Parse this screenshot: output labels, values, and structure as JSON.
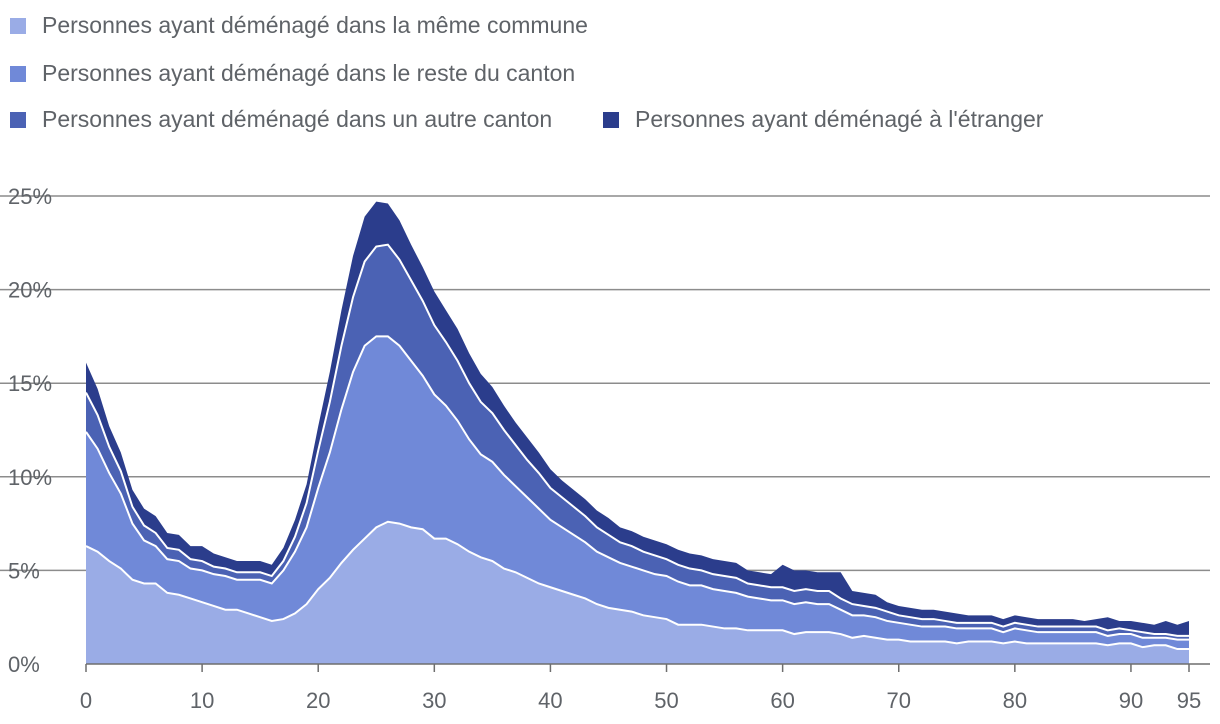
{
  "legend": [
    {
      "label": "Personnes ayant déménagé dans la même commune",
      "color": "#9aace6"
    },
    {
      "label": "Personnes ayant déménagé dans le reste du canton",
      "color": "#7089d8"
    },
    {
      "label": "Personnes ayant déménagé dans un autre canton",
      "color": "#4b62b4"
    },
    {
      "label": "Personnes ayant déménagé à l'étranger",
      "color": "#2b3d8c"
    }
  ],
  "chart_data": {
    "type": "area",
    "stacked": true,
    "title": "",
    "xlabel": "",
    "ylabel": "",
    "x": [
      0,
      1,
      2,
      3,
      4,
      5,
      6,
      7,
      8,
      9,
      10,
      11,
      12,
      13,
      14,
      15,
      16,
      17,
      18,
      19,
      20,
      21,
      22,
      23,
      24,
      25,
      26,
      27,
      28,
      29,
      30,
      31,
      32,
      33,
      34,
      35,
      36,
      37,
      38,
      39,
      40,
      41,
      42,
      43,
      44,
      45,
      46,
      47,
      48,
      49,
      50,
      51,
      52,
      53,
      54,
      55,
      56,
      57,
      58,
      59,
      60,
      61,
      62,
      63,
      64,
      65,
      66,
      67,
      68,
      69,
      70,
      71,
      72,
      73,
      74,
      75,
      76,
      77,
      78,
      79,
      80,
      81,
      82,
      83,
      84,
      85,
      86,
      87,
      88,
      89,
      90,
      91,
      92,
      93,
      94,
      95
    ],
    "xlim": [
      0,
      95
    ],
    "ylim": [
      0,
      25
    ],
    "x_ticks": [
      0,
      10,
      20,
      30,
      40,
      50,
      60,
      70,
      80,
      90,
      95
    ],
    "y_ticks": [
      0,
      5,
      10,
      15,
      20,
      25
    ],
    "y_tick_labels": [
      "0%",
      "5%",
      "10%",
      "15%",
      "20%",
      "25%"
    ],
    "grid": "horizontal",
    "legend_position": "top",
    "series": [
      {
        "name": "Personnes ayant déménagé dans la même commune",
        "color": "#9aace6",
        "values": [
          6.3,
          6.0,
          5.5,
          5.1,
          4.5,
          4.3,
          4.3,
          3.8,
          3.7,
          3.5,
          3.3,
          3.1,
          2.9,
          2.9,
          2.7,
          2.5,
          2.3,
          2.4,
          2.7,
          3.2,
          4.0,
          4.6,
          5.4,
          6.1,
          6.7,
          7.3,
          7.6,
          7.5,
          7.3,
          7.2,
          6.7,
          6.7,
          6.4,
          6.0,
          5.7,
          5.5,
          5.1,
          4.9,
          4.6,
          4.3,
          4.1,
          3.9,
          3.7,
          3.5,
          3.2,
          3.0,
          2.9,
          2.8,
          2.6,
          2.5,
          2.4,
          2.1,
          2.1,
          2.1,
          2.0,
          1.9,
          1.9,
          1.8,
          1.8,
          1.8,
          1.8,
          1.6,
          1.7,
          1.7,
          1.7,
          1.6,
          1.4,
          1.5,
          1.4,
          1.3,
          1.3,
          1.2,
          1.2,
          1.2,
          1.2,
          1.1,
          1.2,
          1.2,
          1.2,
          1.1,
          1.2,
          1.1,
          1.1,
          1.1,
          1.1,
          1.1,
          1.1,
          1.1,
          1.0,
          1.1,
          1.1,
          0.9,
          1.0,
          1.0,
          0.8,
          0.8
        ]
      },
      {
        "name": "Personnes ayant déménagé dans le reste du canton",
        "color": "#7089d8",
        "values": [
          6.1,
          5.5,
          4.7,
          4.0,
          3.0,
          2.3,
          2.0,
          1.8,
          1.8,
          1.6,
          1.7,
          1.7,
          1.8,
          1.6,
          1.8,
          2.0,
          2.0,
          2.6,
          3.3,
          4.1,
          5.4,
          6.7,
          8.2,
          9.5,
          10.3,
          10.2,
          9.9,
          9.5,
          8.9,
          8.2,
          7.7,
          7.1,
          6.6,
          6.0,
          5.5,
          5.3,
          5.0,
          4.6,
          4.3,
          4.0,
          3.6,
          3.4,
          3.2,
          3.0,
          2.8,
          2.7,
          2.5,
          2.4,
          2.4,
          2.3,
          2.3,
          2.3,
          2.1,
          2.1,
          2.0,
          2.0,
          1.9,
          1.8,
          1.7,
          1.6,
          1.6,
          1.6,
          1.6,
          1.5,
          1.5,
          1.3,
          1.2,
          1.1,
          1.1,
          1.0,
          0.9,
          0.9,
          0.8,
          0.8,
          0.8,
          0.8,
          0.7,
          0.7,
          0.7,
          0.6,
          0.7,
          0.7,
          0.6,
          0.6,
          0.6,
          0.6,
          0.6,
          0.6,
          0.5,
          0.5,
          0.5,
          0.5,
          0.4,
          0.4,
          0.5,
          0.5
        ]
      },
      {
        "name": "Personnes ayant déménagé dans un autre canton",
        "color": "#4b62b4",
        "values": [
          2.1,
          1.8,
          1.4,
          1.2,
          0.9,
          0.8,
          0.7,
          0.6,
          0.6,
          0.5,
          0.5,
          0.4,
          0.4,
          0.4,
          0.4,
          0.4,
          0.4,
          0.5,
          0.8,
          1.3,
          2.0,
          2.7,
          3.4,
          4.0,
          4.5,
          4.8,
          4.9,
          4.6,
          4.3,
          4.0,
          3.7,
          3.4,
          3.2,
          3.0,
          2.8,
          2.6,
          2.4,
          2.2,
          2.0,
          1.9,
          1.7,
          1.6,
          1.5,
          1.4,
          1.3,
          1.2,
          1.1,
          1.1,
          1.0,
          1.0,
          0.9,
          0.9,
          0.9,
          0.8,
          0.8,
          0.8,
          0.8,
          0.7,
          0.7,
          0.7,
          0.7,
          0.7,
          0.7,
          0.7,
          0.7,
          0.6,
          0.6,
          0.5,
          0.5,
          0.5,
          0.4,
          0.4,
          0.4,
          0.4,
          0.3,
          0.3,
          0.3,
          0.3,
          0.3,
          0.3,
          0.3,
          0.3,
          0.3,
          0.3,
          0.3,
          0.3,
          0.3,
          0.3,
          0.3,
          0.3,
          0.2,
          0.3,
          0.2,
          0.2,
          0.2,
          0.2
        ]
      },
      {
        "name": "Personnes ayant déménagé à l'étranger",
        "color": "#2b3d8c",
        "values": [
          1.6,
          1.4,
          1.1,
          1.0,
          0.9,
          0.9,
          0.9,
          0.8,
          0.8,
          0.7,
          0.8,
          0.7,
          0.6,
          0.6,
          0.6,
          0.6,
          0.6,
          0.7,
          0.9,
          1.0,
          1.3,
          1.6,
          1.9,
          2.2,
          2.4,
          2.4,
          2.2,
          2.1,
          1.9,
          1.8,
          1.8,
          1.7,
          1.7,
          1.6,
          1.5,
          1.4,
          1.3,
          1.2,
          1.2,
          1.1,
          1.0,
          0.9,
          0.9,
          0.9,
          0.9,
          0.9,
          0.8,
          0.8,
          0.8,
          0.8,
          0.8,
          0.8,
          0.8,
          0.8,
          0.8,
          0.8,
          0.8,
          0.7,
          0.7,
          0.7,
          1.2,
          1.1,
          1.0,
          1.0,
          1.0,
          1.4,
          0.7,
          0.7,
          0.7,
          0.5,
          0.5,
          0.5,
          0.5,
          0.5,
          0.5,
          0.5,
          0.4,
          0.4,
          0.4,
          0.4,
          0.4,
          0.4,
          0.4,
          0.4,
          0.4,
          0.4,
          0.3,
          0.4,
          0.7,
          0.4,
          0.5,
          0.5,
          0.5,
          0.7,
          0.6,
          0.8
        ]
      }
    ]
  }
}
